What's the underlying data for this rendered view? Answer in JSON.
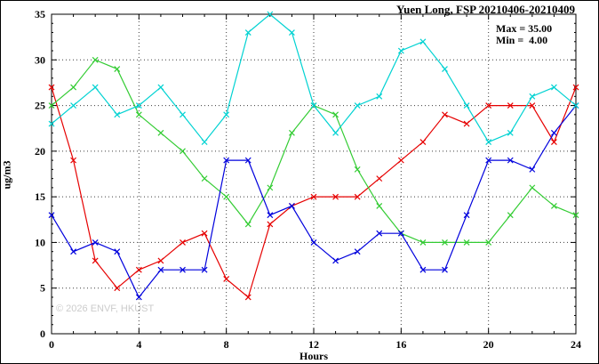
{
  "chart": {
    "title": "Yuen Long, FSP 20210406-20210409",
    "ylabel": "ug/m3",
    "xlabel": "Hours",
    "watermark": "© 2026 ENVF, HKUST",
    "annotations": {
      "max": "Max = 35.00",
      "min": "Min =  4.00"
    }
  },
  "chart_data": {
    "type": "line",
    "title": "Yuen Long, FSP 20210406-20210409",
    "xlabel": "Hours",
    "ylabel": "ug/m3",
    "xlim": [
      0,
      24
    ],
    "ylim": [
      0,
      35
    ],
    "xticks": [
      0,
      4,
      8,
      12,
      16,
      20,
      24
    ],
    "yticks": [
      0,
      5,
      10,
      15,
      20,
      25,
      30,
      35
    ],
    "grid": true,
    "legend": "none",
    "marker": "x",
    "max": 35.0,
    "min": 4.0,
    "x": [
      0,
      1,
      2,
      3,
      4,
      5,
      6,
      7,
      8,
      9,
      10,
      11,
      12,
      13,
      14,
      15,
      16,
      17,
      18,
      19,
      20,
      21,
      22,
      23,
      24
    ],
    "series": [
      {
        "name": "red",
        "color": "#e60000",
        "values": [
          27,
          19,
          8,
          5,
          7,
          8,
          10,
          11,
          6,
          4,
          12,
          14,
          15,
          15,
          15,
          17,
          19,
          21,
          24,
          23,
          25,
          25,
          25,
          21,
          27
        ]
      },
      {
        "name": "green",
        "color": "#33cc33",
        "values": [
          25,
          27,
          30,
          29,
          24,
          22,
          20,
          17,
          15,
          12,
          16,
          22,
          25,
          24,
          18,
          14,
          11,
          10,
          10,
          10,
          10,
          13,
          16,
          14,
          13
        ]
      },
      {
        "name": "blue",
        "color": "#0000dd",
        "values": [
          13,
          9,
          10,
          9,
          4,
          7,
          7,
          7,
          19,
          19,
          13,
          14,
          10,
          8,
          9,
          11,
          11,
          7,
          7,
          13,
          19,
          19,
          18,
          22,
          25
        ]
      },
      {
        "name": "cyan",
        "color": "#00d2d2",
        "values": [
          23,
          25,
          27,
          24,
          25,
          27,
          24,
          21,
          24,
          33,
          35,
          33,
          25,
          22,
          25,
          26,
          31,
          32,
          29,
          25,
          21,
          22,
          26,
          27,
          25
        ]
      }
    ]
  }
}
